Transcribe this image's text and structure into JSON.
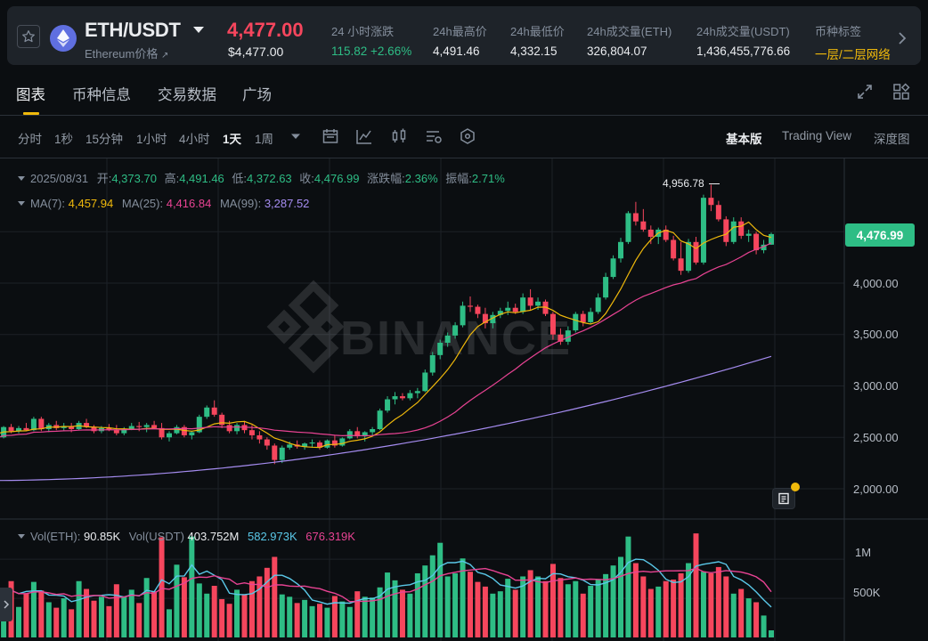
{
  "ticker": {
    "pair": "ETH/USDT",
    "coin_name": "Ethereum价格",
    "coin_name_arrow": "↗",
    "last_price": "4,477.00",
    "usd_price": "$4,477.00",
    "stats": [
      {
        "label": "24 小时涨跌",
        "value": "115.82 +2.66%"
      },
      {
        "label": "24h最高价",
        "value": "4,491.46"
      },
      {
        "label": "24h最低价",
        "value": "4,332.15"
      },
      {
        "label": "24h成交量(ETH)",
        "value": "326,804.07"
      },
      {
        "label": "24h成交量(USDT)",
        "value": "1,436,455,776.66"
      },
      {
        "label": "币种标签",
        "value": "一层/二层网络"
      }
    ]
  },
  "tabs": [
    "图表",
    "币种信息",
    "交易数据",
    "广场"
  ],
  "toolbar": {
    "timeframes": [
      "分时",
      "1秒",
      "15分钟",
      "1小时",
      "4小时",
      "1天",
      "1周"
    ],
    "active_timeframe": "1天",
    "views": [
      "基本版",
      "Trading View",
      "深度图"
    ],
    "active_view": "基本版"
  },
  "legend": {
    "date": "2025/08/31",
    "open_label": "开:",
    "open": "4,373.70",
    "high_label": "高:",
    "high": "4,491.46",
    "low_label": "低:",
    "low": "4,372.63",
    "close_label": "收:",
    "close": "4,476.99",
    "change_label": "涨跌幅:",
    "change": "2.36%",
    "amp_label": "振幅:",
    "amp": "2.71%",
    "ma7_label": "MA(7):",
    "ma7": "4,457.94",
    "ma25_label": "MA(25):",
    "ma25": "4,416.84",
    "ma99_label": "MA(99):",
    "ma99": "3,287.52"
  },
  "vol_legend": {
    "eth_label": "Vol(ETH):",
    "eth": "90.85K",
    "usdt_label": "Vol(USDT)",
    "usdt": "403.752M",
    "ma1": "582.973K",
    "ma2": "676.319K"
  },
  "watermark": "BINANCE",
  "price_axis": [
    "4,000.00",
    "3,500.00",
    "3,000.00",
    "2,500.00",
    "2,000.00"
  ],
  "volume_axis": [
    "1M",
    "500K"
  ],
  "current_price_tag": "4,476.99",
  "high_marker": "4,956.78",
  "colors": {
    "up": "#2ebd85",
    "down": "#f6465d",
    "ma7": "#f0b90b",
    "ma25": "#e84393",
    "ma99": "#a58cf0",
    "accent": "#f0b90b"
  },
  "chart_data": {
    "type": "candlestick",
    "interval": "1天",
    "y_range": [
      1750,
      5000
    ],
    "volume_range": [
      0,
      1400000
    ],
    "ohlc": [
      [
        2580,
        2620,
        2520,
        2560
      ],
      [
        2560,
        2590,
        2480,
        2500
      ],
      [
        2500,
        2610,
        2490,
        2600
      ],
      [
        2600,
        2630,
        2540,
        2560
      ],
      [
        2560,
        2610,
        2540,
        2590
      ],
      [
        2590,
        2640,
        2560,
        2570
      ],
      [
        2570,
        2700,
        2560,
        2680
      ],
      [
        2680,
        2700,
        2560,
        2580
      ],
      [
        2580,
        2640,
        2550,
        2620
      ],
      [
        2620,
        2660,
        2570,
        2590
      ],
      [
        2590,
        2640,
        2560,
        2610
      ],
      [
        2610,
        2640,
        2550,
        2580
      ],
      [
        2580,
        2660,
        2570,
        2640
      ],
      [
        2640,
        2680,
        2590,
        2600
      ],
      [
        2600,
        2620,
        2540,
        2560
      ],
      [
        2560,
        2610,
        2540,
        2590
      ],
      [
        2590,
        2630,
        2560,
        2570
      ],
      [
        2570,
        2620,
        2520,
        2540
      ],
      [
        2540,
        2600,
        2520,
        2580
      ],
      [
        2580,
        2640,
        2570,
        2610
      ],
      [
        2610,
        2650,
        2560,
        2600
      ],
      [
        2600,
        2640,
        2550,
        2620
      ],
      [
        2620,
        2660,
        2580,
        2590
      ],
      [
        2590,
        2640,
        2480,
        2500
      ],
      [
        2500,
        2560,
        2460,
        2540
      ],
      [
        2540,
        2620,
        2530,
        2600
      ],
      [
        2600,
        2620,
        2500,
        2520
      ],
      [
        2520,
        2560,
        2480,
        2550
      ],
      [
        2550,
        2720,
        2540,
        2700
      ],
      [
        2700,
        2810,
        2680,
        2790
      ],
      [
        2790,
        2860,
        2700,
        2720
      ],
      [
        2720,
        2740,
        2590,
        2620
      ],
      [
        2620,
        2660,
        2540,
        2560
      ],
      [
        2560,
        2640,
        2530,
        2620
      ],
      [
        2620,
        2660,
        2540,
        2570
      ],
      [
        2570,
        2620,
        2480,
        2520
      ],
      [
        2520,
        2560,
        2440,
        2480
      ],
      [
        2480,
        2500,
        2380,
        2420
      ],
      [
        2420,
        2440,
        2240,
        2280
      ],
      [
        2280,
        2420,
        2250,
        2400
      ],
      [
        2400,
        2460,
        2380,
        2430
      ],
      [
        2430,
        2470,
        2390,
        2410
      ],
      [
        2410,
        2450,
        2380,
        2440
      ],
      [
        2440,
        2480,
        2400,
        2450
      ],
      [
        2450,
        2470,
        2380,
        2400
      ],
      [
        2400,
        2480,
        2390,
        2470
      ],
      [
        2470,
        2520,
        2400,
        2420
      ],
      [
        2420,
        2500,
        2410,
        2490
      ],
      [
        2490,
        2580,
        2480,
        2560
      ],
      [
        2560,
        2600,
        2490,
        2510
      ],
      [
        2510,
        2560,
        2460,
        2550
      ],
      [
        2550,
        2600,
        2520,
        2580
      ],
      [
        2580,
        2780,
        2570,
        2760
      ],
      [
        2760,
        2900,
        2740,
        2870
      ],
      [
        2870,
        2940,
        2820,
        2900
      ],
      [
        2900,
        2930,
        2860,
        2880
      ],
      [
        2880,
        2960,
        2860,
        2930
      ],
      [
        2930,
        2980,
        2880,
        2950
      ],
      [
        2950,
        3160,
        2940,
        3130
      ],
      [
        3130,
        3330,
        3100,
        3300
      ],
      [
        3300,
        3450,
        3260,
        3420
      ],
      [
        3420,
        3520,
        3380,
        3490
      ],
      [
        3490,
        3620,
        3460,
        3590
      ],
      [
        3590,
        3820,
        3570,
        3780
      ],
      [
        3780,
        3870,
        3720,
        3770
      ],
      [
        3770,
        3790,
        3660,
        3700
      ],
      [
        3700,
        3760,
        3560,
        3610
      ],
      [
        3610,
        3720,
        3560,
        3690
      ],
      [
        3690,
        3760,
        3660,
        3730
      ],
      [
        3730,
        3820,
        3690,
        3760
      ],
      [
        3760,
        3800,
        3700,
        3720
      ],
      [
        3720,
        3900,
        3700,
        3860
      ],
      [
        3860,
        3940,
        3740,
        3780
      ],
      [
        3780,
        3860,
        3740,
        3820
      ],
      [
        3820,
        3840,
        3680,
        3700
      ],
      [
        3700,
        3720,
        3450,
        3500
      ],
      [
        3500,
        3560,
        3400,
        3430
      ],
      [
        3430,
        3580,
        3400,
        3540
      ],
      [
        3540,
        3720,
        3520,
        3700
      ],
      [
        3700,
        3730,
        3580,
        3620
      ],
      [
        3620,
        3760,
        3600,
        3720
      ],
      [
        3720,
        3900,
        3700,
        3860
      ],
      [
        3860,
        4100,
        3840,
        4060
      ],
      [
        4060,
        4270,
        4040,
        4240
      ],
      [
        4240,
        4440,
        4200,
        4400
      ],
      [
        4400,
        4700,
        4380,
        4680
      ],
      [
        4680,
        4790,
        4560,
        4600
      ],
      [
        4600,
        4720,
        4500,
        4520
      ],
      [
        4520,
        4560,
        4380,
        4450
      ],
      [
        4450,
        4540,
        4380,
        4520
      ],
      [
        4520,
        4560,
        4400,
        4420
      ],
      [
        4420,
        4460,
        4220,
        4240
      ],
      [
        4240,
        4400,
        4080,
        4120
      ],
      [
        4120,
        4430,
        4100,
        4400
      ],
      [
        4400,
        4450,
        4180,
        4200
      ],
      [
        4200,
        4860,
        4180,
        4830
      ],
      [
        4830,
        4956.78,
        4700,
        4760
      ],
      [
        4760,
        4800,
        4600,
        4620
      ],
      [
        4620,
        4650,
        4360,
        4400
      ],
      [
        4400,
        4640,
        4380,
        4600
      ],
      [
        4600,
        4640,
        4430,
        4460
      ],
      [
        4460,
        4520,
        4400,
        4480
      ],
      [
        4480,
        4500,
        4280,
        4320
      ],
      [
        4320,
        4420,
        4290,
        4373.7
      ],
      [
        4373.7,
        4491.46,
        4372.63,
        4476.99
      ]
    ],
    "volume": [
      420000,
      680000,
      590000,
      720000,
      390000,
      560000,
      710000,
      600000,
      450000,
      380000,
      500000,
      360000,
      720000,
      620000,
      470000,
      520000,
      400000,
      680000,
      520000,
      610000,
      440000,
      760000,
      590000,
      1280000,
      360000,
      930000,
      770000,
      1290000,
      690000,
      560000,
      660000,
      490000,
      430000,
      610000,
      550000,
      720000,
      780000,
      890000,
      1030000,
      550000,
      520000,
      440000,
      480000,
      400000,
      430000,
      380000,
      530000,
      460000,
      390000,
      590000,
      520000,
      510000,
      640000,
      830000,
      730000,
      610000,
      560000,
      820000,
      920000,
      1050000,
      1210000,
      780000,
      820000,
      1010000,
      840000,
      710000,
      650000,
      560000,
      590000,
      750000,
      610000,
      780000,
      860000,
      780000,
      720000,
      940000,
      760000,
      680000,
      720000,
      560000,
      660000,
      740000,
      810000,
      920000,
      1030000,
      1290000,
      950000,
      780000,
      620000,
      650000,
      720000,
      740000,
      820000,
      950000,
      1330000,
      840000,
      820000,
      900000,
      780000,
      560000,
      620000,
      500000,
      450000,
      280000,
      90850
    ]
  }
}
